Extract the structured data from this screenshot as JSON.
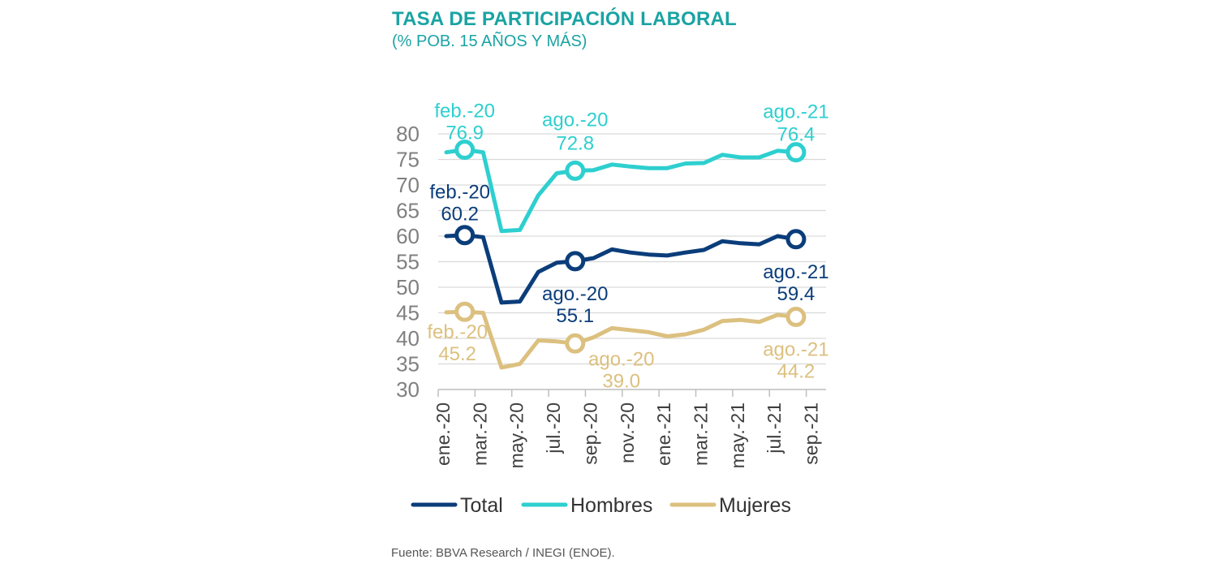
{
  "header": {
    "title": "TASA DE PARTICIPACIÓN LABORAL",
    "subtitle": "(% POB. 15 AÑOS Y MÁS)"
  },
  "footer": {
    "source": "Fuente: BBVA Research / INEGI (ENOE)."
  },
  "colors": {
    "total": "#0b3d7a",
    "hombres": "#2ecfcf",
    "mujeres": "#dcc07f",
    "title": "#1aa3a3",
    "grid": "#d9d9d9"
  },
  "chart_data": {
    "type": "line",
    "title": "TASA DE PARTICIPACIÓN LABORAL",
    "subtitle": "(% POB. 15 AÑOS Y MÁS)",
    "ylim": [
      30,
      80
    ],
    "yticks": [
      30,
      35,
      40,
      45,
      50,
      55,
      60,
      65,
      70,
      75,
      80
    ],
    "grid": true,
    "legend_position": "bottom",
    "x": [
      "ene.-20",
      "feb.-20",
      "mar.-20",
      "abr.-20",
      "may.-20",
      "jun.-20",
      "jul.-20",
      "ago.-20",
      "sep.-20",
      "oct.-20",
      "nov.-20",
      "dic.-20",
      "ene.-21",
      "feb.-21",
      "mar.-21",
      "abr.-21",
      "may.-21",
      "jun.-21",
      "jul.-21",
      "ago.-21"
    ],
    "xtick_labels": [
      "ene.-20",
      "mar.-20",
      "may.-20",
      "jul.-20",
      "sep.-20",
      "nov.-20",
      "ene.-21",
      "mar.-21",
      "may.-21",
      "jul.-21",
      "sep.-21"
    ],
    "series": [
      {
        "name": "Total",
        "key": "total",
        "values": [
          60.0,
          60.2,
          59.8,
          47.0,
          47.2,
          53.0,
          54.8,
          55.1,
          55.7,
          57.4,
          56.8,
          56.4,
          56.2,
          56.8,
          57.3,
          59.0,
          58.6,
          58.4,
          60.0,
          59.4
        ]
      },
      {
        "name": "Hombres",
        "key": "hombres",
        "values": [
          76.4,
          76.9,
          76.4,
          61.0,
          61.2,
          68.0,
          72.3,
          72.8,
          72.9,
          74.0,
          73.6,
          73.3,
          73.3,
          74.2,
          74.3,
          75.9,
          75.4,
          75.4,
          76.7,
          76.4
        ]
      },
      {
        "name": "Mujeres",
        "key": "mujeres",
        "values": [
          45.1,
          45.2,
          45.0,
          34.3,
          35.0,
          39.6,
          39.4,
          39.0,
          40.2,
          42.0,
          41.6,
          41.2,
          40.4,
          40.8,
          41.7,
          43.4,
          43.6,
          43.2,
          44.6,
          44.2
        ]
      }
    ],
    "annotations": [
      {
        "series": "hombres",
        "index": 1,
        "date": "feb.-20",
        "value": "76.9"
      },
      {
        "series": "hombres",
        "index": 7,
        "date": "ago.-20",
        "value": "72.8"
      },
      {
        "series": "hombres",
        "index": 19,
        "date": "ago.-21",
        "value": "76.4"
      },
      {
        "series": "total",
        "index": 1,
        "date": "feb.-20",
        "value": "60.2"
      },
      {
        "series": "total",
        "index": 7,
        "date": "ago.-20",
        "value": "55.1"
      },
      {
        "series": "total",
        "index": 19,
        "date": "ago.-21",
        "value": "59.4"
      },
      {
        "series": "mujeres",
        "index": 1,
        "date": "feb.-20",
        "value": "45.2"
      },
      {
        "series": "mujeres",
        "index": 7,
        "date": "ago.-20",
        "value": "39.0"
      },
      {
        "series": "mujeres",
        "index": 19,
        "date": "ago.-21",
        "value": "44.2"
      }
    ]
  }
}
